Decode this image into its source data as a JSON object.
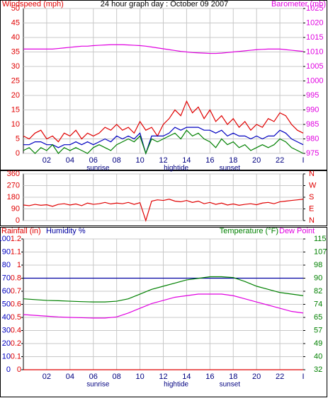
{
  "chart_data": [
    {
      "type": "line",
      "title": "24 hour graph day : October 09 2007",
      "ylabel": "Windspeed (mph)",
      "y2label": "Barometer (mb)",
      "ycolor": "#e00000",
      "y2color": "#e000e0",
      "x": [
        0,
        0.5,
        1,
        1.5,
        2,
        2.5,
        3,
        3.5,
        4,
        4.5,
        5,
        5.5,
        6,
        6.5,
        7,
        7.5,
        8,
        8.5,
        9,
        9.5,
        10,
        10.5,
        11,
        11.5,
        12,
        12.5,
        13,
        13.5,
        14,
        14.5,
        15,
        15.5,
        16,
        16.5,
        17,
        17.5,
        18,
        18.5,
        19,
        19.5,
        20,
        20.5,
        21,
        21.5,
        22,
        22.5,
        23,
        23.5,
        24
      ],
      "xlim": [
        0,
        24
      ],
      "xticks": [
        {
          "value": 2,
          "label": "02"
        },
        {
          "value": 4,
          "label": "04"
        },
        {
          "value": 6,
          "label": "06"
        },
        {
          "value": 8,
          "label": "08"
        },
        {
          "value": 10,
          "label": "10"
        },
        {
          "value": 12,
          "label": "12"
        },
        {
          "value": 14,
          "label": "14"
        },
        {
          "value": 16,
          "label": "16"
        },
        {
          "value": 18,
          "label": "18"
        },
        {
          "value": 20,
          "label": "20"
        },
        {
          "value": 22,
          "label": "22"
        },
        {
          "value": 24,
          "label": "I"
        }
      ],
      "ylim": [
        0,
        50
      ],
      "yticks": [
        0,
        5,
        10,
        15,
        20,
        25,
        30,
        35,
        40,
        45,
        50
      ],
      "y2lim": [
        975,
        1025
      ],
      "y2ticks": [
        975,
        980,
        985,
        990,
        995,
        1000,
        1005,
        1010,
        1015,
        1020,
        1025
      ],
      "annotations": [
        {
          "text": "sunrise",
          "x": 6.4
        },
        {
          "text": "hightide",
          "x": 13.1
        },
        {
          "text": "sunset",
          "x": 17.7
        }
      ],
      "series": [
        {
          "color": "#e00000",
          "values": [
            6,
            5,
            7,
            8,
            5,
            6,
            4,
            7,
            6,
            8,
            5,
            7,
            6,
            7,
            9,
            8,
            10,
            8,
            9,
            7,
            11,
            8,
            9,
            6,
            10,
            12,
            15,
            13,
            18,
            14,
            16,
            12,
            15,
            11,
            13,
            10,
            12,
            9,
            11,
            8,
            10,
            9,
            12,
            11,
            14,
            13,
            10,
            8,
            7
          ]
        },
        {
          "color": "#0000c0",
          "values": [
            3,
            3,
            4,
            4,
            3,
            3,
            2,
            3,
            3,
            4,
            3,
            4,
            3,
            4,
            5,
            4,
            6,
            5,
            6,
            5,
            7,
            0,
            6,
            6,
            6,
            7,
            9,
            8,
            9,
            9,
            9,
            8,
            8,
            7,
            8,
            6,
            7,
            6,
            6,
            5,
            6,
            5,
            6,
            6,
            8,
            7,
            5,
            4,
            3
          ]
        },
        {
          "color": "#008000",
          "values": [
            1,
            2,
            0,
            2,
            1,
            3,
            0,
            2,
            1,
            2,
            1,
            0,
            2,
            3,
            2,
            1,
            3,
            4,
            5,
            4,
            6,
            0,
            5,
            4,
            5,
            6,
            7,
            5,
            8,
            6,
            7,
            5,
            4,
            2,
            5,
            3,
            4,
            2,
            3,
            1,
            2,
            3,
            2,
            3,
            5,
            4,
            2,
            1,
            0
          ]
        },
        {
          "color": "#e000e0",
          "axis": "y2",
          "values": [
            1011,
            1011,
            1011,
            1011,
            1011,
            1011,
            1011.2,
            1011.4,
            1011.6,
            1011.8,
            1012,
            1012,
            1012.2,
            1012.3,
            1012.4,
            1012.5,
            1012.5,
            1012.5,
            1012.4,
            1012.3,
            1012.2,
            1012,
            1011.7,
            1011.4,
            1011.1,
            1010.8,
            1010.5,
            1010.2,
            1010,
            1009.8,
            1009.7,
            1009.6,
            1009.5,
            1009.5,
            1009.6,
            1009.8,
            1010,
            1010.2,
            1010.4,
            1010.6,
            1010.8,
            1010.9,
            1011,
            1011,
            1011,
            1010.8,
            1010.6,
            1010.4,
            1010.2
          ]
        }
      ]
    },
    {
      "type": "line",
      "ycolor": "#e00000",
      "y2color": "#e00000",
      "x": [
        0,
        0.5,
        1,
        1.5,
        2,
        2.5,
        3,
        3.5,
        4,
        4.5,
        5,
        5.5,
        6,
        6.5,
        7,
        7.5,
        8,
        8.5,
        9,
        9.5,
        10,
        10.5,
        11,
        11.5,
        12,
        12.5,
        13,
        13.5,
        14,
        14.5,
        15,
        15.5,
        16,
        16.5,
        17,
        17.5,
        18,
        18.5,
        19,
        19.5,
        20,
        20.5,
        21,
        21.5,
        22,
        22.5,
        23,
        23.5,
        24
      ],
      "xlim": [
        0,
        24
      ],
      "xticks": [
        2,
        4,
        6,
        8,
        10,
        12,
        14,
        16,
        18,
        20,
        22
      ],
      "ylim": [
        0,
        360
      ],
      "yticks": [
        0,
        90,
        180,
        270,
        360
      ],
      "y2lim": [
        0,
        360
      ],
      "y2ticks": [
        {
          "value": 0,
          "label": "N"
        },
        {
          "value": 90,
          "label": "E"
        },
        {
          "value": 180,
          "label": "S"
        },
        {
          "value": 270,
          "label": "W"
        },
        {
          "value": 360,
          "label": "N"
        }
      ],
      "series": [
        {
          "color": "#e00000",
          "values": [
            120,
            115,
            125,
            118,
            122,
            110,
            125,
            130,
            120,
            128,
            115,
            135,
            125,
            130,
            140,
            128,
            135,
            130,
            140,
            125,
            138,
            0,
            150,
            160,
            155,
            165,
            150,
            145,
            155,
            140,
            150,
            130,
            140,
            125,
            135,
            120,
            128,
            118,
            125,
            130,
            122,
            135,
            140,
            130,
            145,
            150,
            155,
            160,
            165
          ]
        }
      ]
    },
    {
      "type": "line",
      "ycolor": "#0000c0",
      "y2color": "#008000",
      "y3color": "#e00000",
      "x": [
        0,
        1,
        2,
        3,
        4,
        5,
        6,
        7,
        8,
        9,
        10,
        11,
        12,
        13,
        14,
        15,
        16,
        17,
        18,
        19,
        20,
        21,
        22,
        23,
        24
      ],
      "xlim": [
        0,
        24
      ],
      "xticks": [
        {
          "value": 2,
          "label": "02"
        },
        {
          "value": 4,
          "label": "04"
        },
        {
          "value": 6,
          "label": "06"
        },
        {
          "value": 8,
          "label": "08"
        },
        {
          "value": 10,
          "label": "10"
        },
        {
          "value": 12,
          "label": "12"
        },
        {
          "value": 14,
          "label": "14"
        },
        {
          "value": 16,
          "label": "16"
        },
        {
          "value": 18,
          "label": "18"
        },
        {
          "value": 20,
          "label": "20"
        },
        {
          "value": 22,
          "label": "22"
        },
        {
          "value": 24,
          "label": "I"
        }
      ],
      "ylim": [
        0,
        100
      ],
      "yticks": [
        0,
        10,
        20,
        30,
        40,
        50,
        60,
        70,
        80,
        90,
        100
      ],
      "y2lim": [
        32,
        115
      ],
      "y2ticks": [
        32,
        {
          "value": 40.3,
          "label": "40"
        },
        {
          "value": 48.6,
          "label": "49"
        },
        {
          "value": 56.9,
          "label": "57"
        },
        {
          "value": 65.2,
          "label": "65"
        },
        {
          "value": 73.5,
          "label": "74"
        },
        {
          "value": 81.8,
          "label": "82"
        },
        {
          "value": 90.1,
          "label": "90"
        },
        {
          "value": 98.4,
          "label": "98"
        },
        {
          "value": 106.7,
          "label": "107"
        },
        115
      ],
      "y3lim": [
        0,
        1.2
      ],
      "y3ticks": [
        0,
        {
          "value": 0.12,
          "label": "0.1"
        },
        {
          "value": 0.24,
          "label": "0.2"
        },
        {
          "value": 0.36,
          "label": "0.4"
        },
        {
          "value": 0.48,
          "label": "0.5"
        },
        0.6,
        {
          "value": 0.72,
          "label": "0.7"
        },
        {
          "value": 0.84,
          "label": "0.8"
        },
        {
          "value": 0.96,
          "label": "1"
        },
        {
          "value": 1.08,
          "label": "1.1"
        },
        1.2
      ],
      "annotations": [
        {
          "text": "sunrise",
          "x": 6.4
        },
        {
          "text": "hightide",
          "x": 13.1
        },
        {
          "text": "sunset",
          "x": 17.7
        }
      ],
      "series": [
        {
          "name": "Rainfall (in)",
          "color": "#e00000",
          "axis": "y3",
          "values": [
            0,
            0,
            0,
            0,
            0,
            0,
            0,
            0,
            0,
            0,
            0,
            0,
            0,
            0,
            0,
            0,
            0,
            0,
            0,
            0,
            0,
            0,
            0,
            0,
            0
          ]
        },
        {
          "name": "Humidity %",
          "color": "#0000a0",
          "values": [
            70,
            70,
            70,
            70,
            70,
            70,
            70,
            70,
            70,
            70,
            70,
            70,
            70,
            70,
            70,
            70,
            70,
            70,
            70,
            70,
            70,
            70,
            70,
            70,
            70
          ]
        },
        {
          "name": "Temperature (°F)",
          "color": "#008000",
          "axis": "y2",
          "values": [
            77,
            76.5,
            76,
            75.8,
            75.5,
            75.2,
            75,
            75,
            75.5,
            77,
            80,
            83,
            85,
            87,
            89,
            90,
            91,
            91,
            90.5,
            88,
            85,
            83,
            81,
            80,
            79
          ]
        },
        {
          "name": "Dew Point",
          "color": "#e000e0",
          "axis": "y2",
          "values": [
            67,
            66.5,
            66,
            65.5,
            65.2,
            65,
            64.8,
            64.8,
            65.5,
            68,
            71,
            74,
            76,
            78,
            79,
            80,
            80,
            80,
            79,
            77,
            75,
            73,
            71,
            69,
            68
          ]
        }
      ]
    }
  ]
}
